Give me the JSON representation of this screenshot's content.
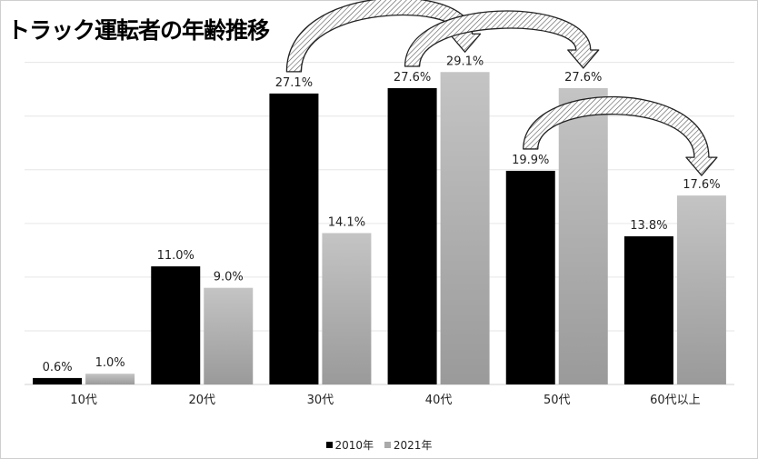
{
  "chart_data": {
    "type": "bar",
    "title": "トラック運転者の年齢推移",
    "categories": [
      "10代",
      "20代",
      "30代",
      "40代",
      "50代",
      "60代以上"
    ],
    "series": [
      {
        "name": "2010年",
        "color": "#000000",
        "values": [
          0.6,
          11.0,
          27.1,
          27.6,
          19.9,
          13.8
        ],
        "labels": [
          "0.6%",
          "11.0%",
          "27.1%",
          "27.6%",
          "19.9%",
          "13.8%"
        ]
      },
      {
        "name": "2021年",
        "color": "#aaaaaa",
        "values": [
          1.0,
          9.0,
          14.1,
          29.1,
          27.6,
          17.6
        ],
        "labels": [
          "1.0%",
          "9.0%",
          "14.1%",
          "29.1%",
          "27.6%",
          "17.6%"
        ]
      }
    ],
    "ylim": [
      0,
      32
    ],
    "grid": true,
    "legend_position": "bottom",
    "annotations": [
      {
        "type": "arrow",
        "from": "30代 2010年",
        "to": "40代 2021年"
      },
      {
        "type": "arrow",
        "from": "40代 2010年",
        "to": "50代 2021年"
      },
      {
        "type": "arrow",
        "from": "50代 2010年",
        "to": "60代以上 2021年"
      }
    ]
  }
}
